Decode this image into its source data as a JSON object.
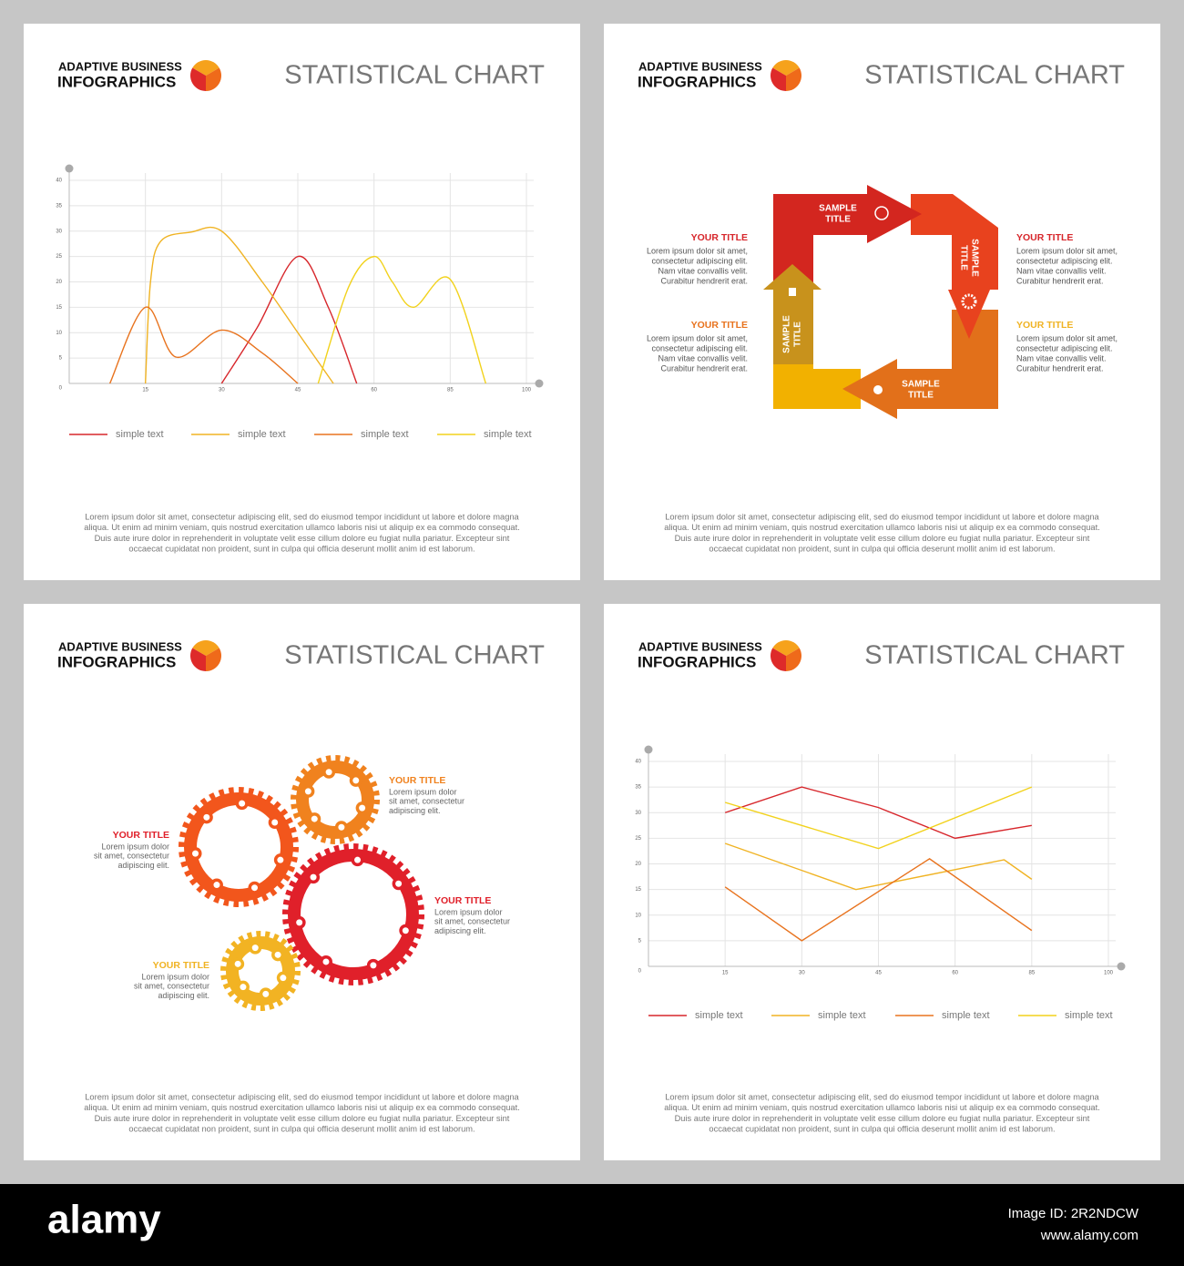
{
  "panels": [
    {
      "brand_top": "ADAPTIVE BUSINESS",
      "brand_bottom": "INFOGRAPHICS",
      "heading": "STATISTICAL CHART",
      "body": [
        "Lorem ipsum dolor sit amet, consectetur adipiscing elit, sed do eiusmod tempor incididunt ut labore et dolore magna",
        "aliqua. Ut enim ad minim veniam, quis nostrud exercitation ullamco laboris nisi ut aliquip ex ea commodo consequat.",
        "Duis aute irure dolor in reprehenderit in voluptate velit esse cillum dolore eu fugiat nulla pariatur. Excepteur sint",
        "occaecat cupidatat non proident, sunt in culpa qui officia deserunt mollit anim id est laborum."
      ]
    },
    {
      "brand_top": "ADAPTIVE BUSINESS",
      "brand_bottom": "INFOGRAPHICS",
      "heading": "STATISTICAL CHART",
      "body": [
        "Lorem ipsum dolor sit amet, consectetur adipiscing elit, sed do eiusmod tempor incididunt ut labore et dolore magna",
        "aliqua. Ut enim ad minim veniam, quis nostrud exercitation ullamco laboris nisi ut aliquip ex ea commodo consequat.",
        "Duis aute irure dolor in reprehenderit in voluptate velit esse cillum dolore eu fugiat nulla pariatur. Excepteur sint",
        "occaecat cupidatat non proident, sunt in culpa qui officia deserunt mollit anim id est laborum."
      ]
    },
    {
      "brand_top": "ADAPTIVE BUSINESS",
      "brand_bottom": "INFOGRAPHICS",
      "heading": "STATISTICAL CHART",
      "body": [
        "Lorem ipsum dolor sit amet, consectetur adipiscing elit, sed do eiusmod tempor incididunt ut labore et dolore magna",
        "aliqua. Ut enim ad minim veniam, quis nostrud exercitation ullamco laboris nisi ut aliquip ex ea commodo consequat.",
        "Duis aute irure dolor in reprehenderit in voluptate velit esse cillum dolore eu fugiat nulla pariatur. Excepteur sint",
        "occaecat cupidatat non proident, sunt in culpa qui officia deserunt mollit anim id est laborum."
      ]
    },
    {
      "brand_top": "ADAPTIVE BUSINESS",
      "brand_bottom": "INFOGRAPHICS",
      "heading": "STATISTICAL CHART",
      "body": [
        "Lorem ipsum dolor sit amet, consectetur adipiscing elit, sed do eiusmod tempor incididunt ut labore et dolore magna",
        "aliqua. Ut enim ad minim veniam, quis nostrud exercitation ullamco laboris nisi ut aliquip ex ea commodo consequat.",
        "Duis aute irure dolor in reprehenderit in voluptate velit esse cillum dolore eu fugiat nulla pariatur. Excepteur sint",
        "occaecat cupidatat non proident, sunt in culpa qui officia deserunt mollit anim id est laborum."
      ]
    }
  ],
  "chart_data": [
    {
      "type": "line",
      "smooth": true,
      "grid": true,
      "xlim": [
        0,
        100
      ],
      "xticks": [
        15,
        30,
        45,
        60,
        85,
        100
      ],
      "ylim": [
        0,
        40
      ],
      "yticks": [
        0,
        5,
        10,
        15,
        20,
        25,
        30,
        35,
        40
      ],
      "series": [
        {
          "name": "simple text",
          "color": "#d7262b",
          "x": [
            30,
            37,
            45,
            51,
            56.6
          ],
          "values": [
            0,
            11,
            25,
            15,
            0
          ]
        },
        {
          "name": "simple text",
          "color": "#f0b323",
          "x": [
            15,
            16,
            18,
            24,
            30,
            38,
            45,
            52
          ],
          "values": [
            0,
            20,
            28,
            29.8,
            30,
            20,
            10,
            0
          ]
        },
        {
          "name": "simple text",
          "color": "#e8731e",
          "x": [
            8,
            15,
            21,
            30,
            38,
            45
          ],
          "values": [
            0,
            15,
            5.2,
            10.5,
            6,
            0
          ]
        },
        {
          "name": "simple text",
          "color": "#f2d21c",
          "x": [
            49,
            55,
            60,
            66,
            73,
            85,
            92
          ],
          "values": [
            0,
            19,
            25,
            20,
            15,
            20.5,
            0
          ]
        }
      ]
    },
    {
      "type": "line",
      "smooth": false,
      "grid": true,
      "xlim": [
        0,
        100
      ],
      "xticks": [
        15,
        30,
        45,
        60,
        85,
        100
      ],
      "ylim": [
        0,
        40
      ],
      "yticks": [
        0,
        5,
        10,
        15,
        20,
        25,
        30,
        35,
        40
      ],
      "series": [
        {
          "name": "simple text",
          "color": "#d7262b",
          "x": [
            15,
            30,
            45,
            60,
            85
          ],
          "values": [
            30,
            35,
            31,
            25,
            27.5
          ]
        },
        {
          "name": "simple text",
          "color": "#f0b323",
          "x": [
            15,
            40.6,
            76,
            85
          ],
          "values": [
            24,
            15,
            20.8,
            17
          ]
        },
        {
          "name": "simple text",
          "color": "#e8731e",
          "x": [
            15,
            30,
            55,
            85
          ],
          "values": [
            15.5,
            5,
            21,
            7
          ]
        },
        {
          "name": "simple text",
          "color": "#f2d21c",
          "x": [
            15,
            45,
            85
          ],
          "values": [
            32,
            23,
            35
          ]
        }
      ]
    }
  ],
  "cycle": {
    "steps": [
      [
        "SAMPLE",
        "TITLE"
      ],
      [
        "SAMPLE",
        "TITLE"
      ],
      [
        "SAMPLE",
        "TITLE"
      ],
      [
        "SAMPLE",
        "TITLE"
      ]
    ],
    "notes": [
      {
        "title": "YOUR TITLE",
        "lines": [
          "Lorem ipsum dolor sit amet,",
          "consectetur adipiscing elit.",
          "Nam vitae convallis velit.",
          "Curabitur hendrerit erat."
        ]
      },
      {
        "title": "YOUR TITLE",
        "lines": [
          "Lorem ipsum dolor sit amet,",
          "consectetur adipiscing elit.",
          "Nam vitae convallis velit.",
          "Curabitur hendrerit erat."
        ]
      },
      {
        "title": "YOUR TITLE",
        "lines": [
          "Lorem ipsum dolor sit amet,",
          "consectetur adipiscing elit.",
          "Nam vitae convallis velit.",
          "Curabitur hendrerit erat."
        ]
      },
      {
        "title": "YOUR TITLE",
        "lines": [
          "Lorem ipsum dolor sit amet,",
          "consectetur adipiscing elit.",
          "Nam vitae convallis velit.",
          "Curabitur hendrerit erat."
        ]
      }
    ]
  },
  "gears": {
    "notes": [
      {
        "title": "YOUR TITLE",
        "lines": [
          "Lorem ipsum dolor",
          "sit amet, consectetur",
          "adipiscing elit."
        ]
      },
      {
        "title": "YOUR TITLE",
        "lines": [
          "Lorem ipsum dolor",
          "sit amet, consectetur",
          "adipiscing elit."
        ]
      },
      {
        "title": "YOUR TITLE",
        "lines": [
          "Lorem ipsum dolor",
          "sit amet, consectetur",
          "adipiscing elit."
        ]
      },
      {
        "title": "YOUR TITLE",
        "lines": [
          "Lorem ipsum dolor",
          "sit amet, consectetur",
          "adipiscing elit."
        ]
      }
    ]
  },
  "footer": {
    "logo": "alamy",
    "image_id": "Image ID: 2R2NDCW",
    "url": "www.alamy.com"
  }
}
